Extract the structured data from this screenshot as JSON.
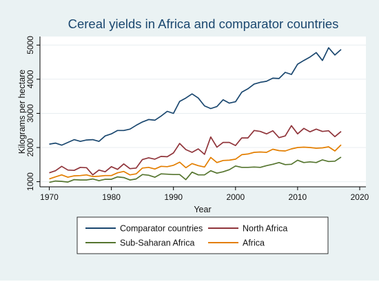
{
  "chart_data": {
    "type": "line",
    "title": "Cereal yields in Africa and comparator countries",
    "xlabel": "Year",
    "ylabel": "Kilograms per hectare",
    "xlim": [
      1968.5,
      2021
    ],
    "ylim": [
      850,
      5250
    ],
    "xticks": [
      1970,
      1980,
      1990,
      2000,
      2010,
      2020
    ],
    "yticks": [
      1000,
      2000,
      3000,
      4000,
      5000
    ],
    "grid": true,
    "legend_position": "bottom",
    "x": [
      1970,
      1971,
      1972,
      1973,
      1974,
      1975,
      1976,
      1977,
      1978,
      1979,
      1980,
      1981,
      1982,
      1983,
      1984,
      1985,
      1986,
      1987,
      1988,
      1989,
      1990,
      1991,
      1992,
      1993,
      1994,
      1995,
      1996,
      1997,
      1998,
      1999,
      2000,
      2001,
      2002,
      2003,
      2004,
      2005,
      2006,
      2007,
      2008,
      2009,
      2010,
      2011,
      2012,
      2013,
      2014,
      2015,
      2016,
      2017
    ],
    "series": [
      {
        "name": "Comparator countries",
        "color": "#1a476f",
        "values": [
          2100,
          2130,
          2070,
          2150,
          2230,
          2180,
          2220,
          2230,
          2180,
          2340,
          2400,
          2500,
          2500,
          2540,
          2650,
          2750,
          2820,
          2800,
          2920,
          3060,
          3000,
          3350,
          3450,
          3570,
          3450,
          3220,
          3140,
          3200,
          3400,
          3300,
          3340,
          3620,
          3720,
          3860,
          3910,
          3940,
          4030,
          4020,
          4200,
          4140,
          4440,
          4550,
          4650,
          4780,
          4550,
          4920,
          4710,
          4870
        ]
      },
      {
        "name": "North Africa",
        "color": "#90353b",
        "values": [
          1260,
          1320,
          1450,
          1340,
          1330,
          1420,
          1410,
          1200,
          1340,
          1290,
          1440,
          1360,
          1520,
          1380,
          1400,
          1650,
          1700,
          1660,
          1740,
          1730,
          1840,
          2120,
          1940,
          1860,
          1960,
          1800,
          2310,
          2010,
          2150,
          2150,
          2060,
          2280,
          2280,
          2500,
          2470,
          2400,
          2490,
          2290,
          2340,
          2640,
          2400,
          2560,
          2460,
          2540,
          2470,
          2490,
          2320,
          2470
        ]
      },
      {
        "name": "Sub-Saharan Africa",
        "color": "#55752f",
        "values": [
          980,
          1020,
          1010,
          990,
          1060,
          1050,
          1050,
          1080,
          1030,
          1070,
          1070,
          1140,
          1120,
          1050,
          1080,
          1210,
          1190,
          1130,
          1230,
          1220,
          1210,
          1210,
          1060,
          1280,
          1200,
          1200,
          1320,
          1250,
          1290,
          1350,
          1460,
          1420,
          1420,
          1430,
          1420,
          1470,
          1510,
          1560,
          1500,
          1510,
          1630,
          1560,
          1580,
          1560,
          1640,
          1590,
          1600,
          1720
        ]
      },
      {
        "name": "Africa",
        "color": "#e37e00",
        "values": [
          1080,
          1140,
          1200,
          1130,
          1170,
          1180,
          1200,
          1150,
          1160,
          1180,
          1180,
          1260,
          1300,
          1200,
          1230,
          1400,
          1420,
          1370,
          1450,
          1440,
          1480,
          1570,
          1410,
          1530,
          1470,
          1430,
          1710,
          1560,
          1620,
          1630,
          1660,
          1790,
          1810,
          1860,
          1870,
          1860,
          1950,
          1910,
          1900,
          1960,
          2000,
          2010,
          2000,
          1980,
          1990,
          2020,
          1900,
          2080
        ]
      }
    ]
  }
}
